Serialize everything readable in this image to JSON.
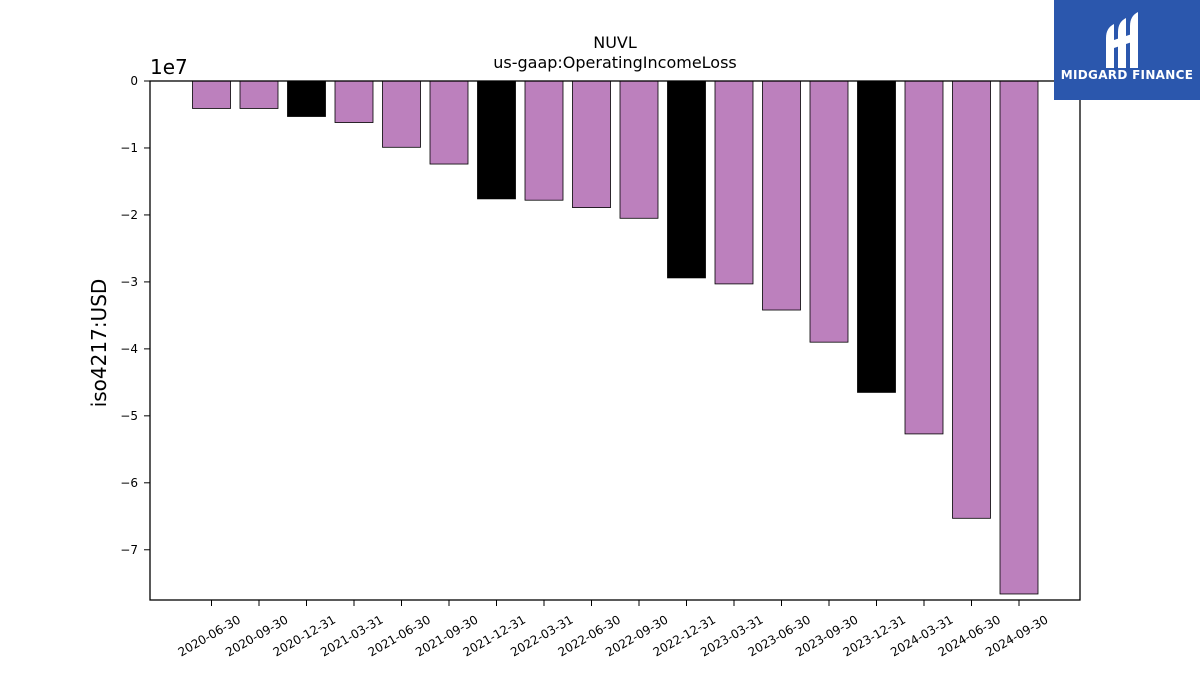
{
  "chart_data": {
    "type": "bar",
    "title": "NUVL",
    "subtitle": "us-gaap:OperatingIncomeLoss",
    "xlabel": "",
    "ylabel": "iso4217:USD",
    "y_offset_label": "1e7",
    "ylim": [
      -77500000,
      0
    ],
    "yticks": [
      0,
      -10000000,
      -20000000,
      -30000000,
      -40000000,
      -50000000,
      -60000000,
      -70000000
    ],
    "ytick_labels": [
      "0",
      "−1",
      "−2",
      "−3",
      "−4",
      "−5",
      "−6",
      "−7"
    ],
    "grid": false,
    "categories": [
      "2020-06-30",
      "2020-09-30",
      "2020-12-31",
      "2021-03-31",
      "2021-06-30",
      "2021-09-30",
      "2021-12-31",
      "2022-03-31",
      "2022-06-30",
      "2022-09-30",
      "2022-12-31",
      "2023-03-31",
      "2023-06-30",
      "2023-09-30",
      "2023-12-31",
      "2024-03-31",
      "2024-06-30",
      "2024-09-30"
    ],
    "values": [
      -4100000,
      -4100000,
      -5300000,
      -6200000,
      -9900000,
      -12400000,
      -17600000,
      -17800000,
      -18900000,
      -20500000,
      -29400000,
      -30300000,
      -34200000,
      -39000000,
      -46500000,
      -52700000,
      -65300000,
      -76600000
    ],
    "bar_colors": [
      "#bc80bd",
      "#bc80bd",
      "#000000",
      "#bc80bd",
      "#bc80bd",
      "#bc80bd",
      "#000000",
      "#bc80bd",
      "#bc80bd",
      "#bc80bd",
      "#000000",
      "#bc80bd",
      "#bc80bd",
      "#bc80bd",
      "#000000",
      "#bc80bd",
      "#bc80bd",
      "#bc80bd"
    ],
    "colors": {
      "quarter": "#bc80bd",
      "fiscal_year_end": "#000000"
    }
  },
  "logo": {
    "text": "MIDGARD FINANCE",
    "background": "#2b57ad",
    "icon": "midgard-logo-icon"
  }
}
